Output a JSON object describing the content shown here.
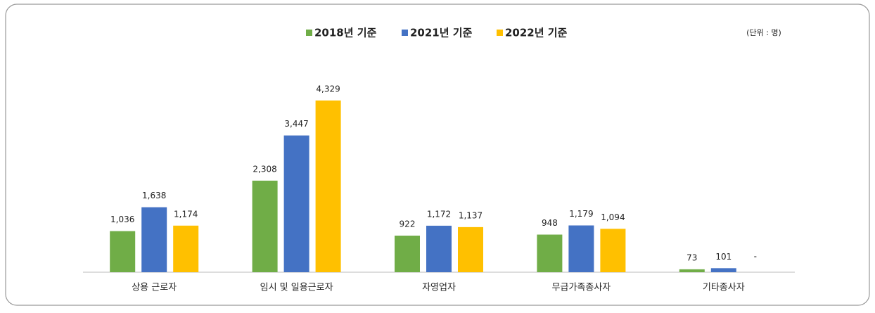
{
  "chart_data": {
    "type": "bar",
    "unit_note": "(단위 : 명)",
    "categories": [
      "상용 근로자",
      "임시 및 일용근로자",
      "자영업자",
      "무급가족종사자",
      "기타종사자"
    ],
    "series": [
      {
        "name": "2018년 기준",
        "color": "#70ad47",
        "values": [
          1036,
          2308,
          922,
          948,
          73
        ],
        "value_labels": [
          "1,036",
          "2,308",
          "922",
          "948",
          "73"
        ]
      },
      {
        "name": "2021년 기준",
        "color": "#4472c4",
        "values": [
          1638,
          3447,
          1172,
          1179,
          101
        ],
        "value_labels": [
          "1,638",
          "3,447",
          "1,172",
          "1,179",
          "101"
        ]
      },
      {
        "name": "2022년 기준",
        "color": "#ffc000",
        "values": [
          1174,
          4329,
          1137,
          1094,
          null
        ],
        "value_labels": [
          "1,174",
          "4,329",
          "1,137",
          "1,094",
          "-"
        ]
      }
    ],
    "ylim": [
      0,
      5000
    ],
    "legend": "top"
  }
}
